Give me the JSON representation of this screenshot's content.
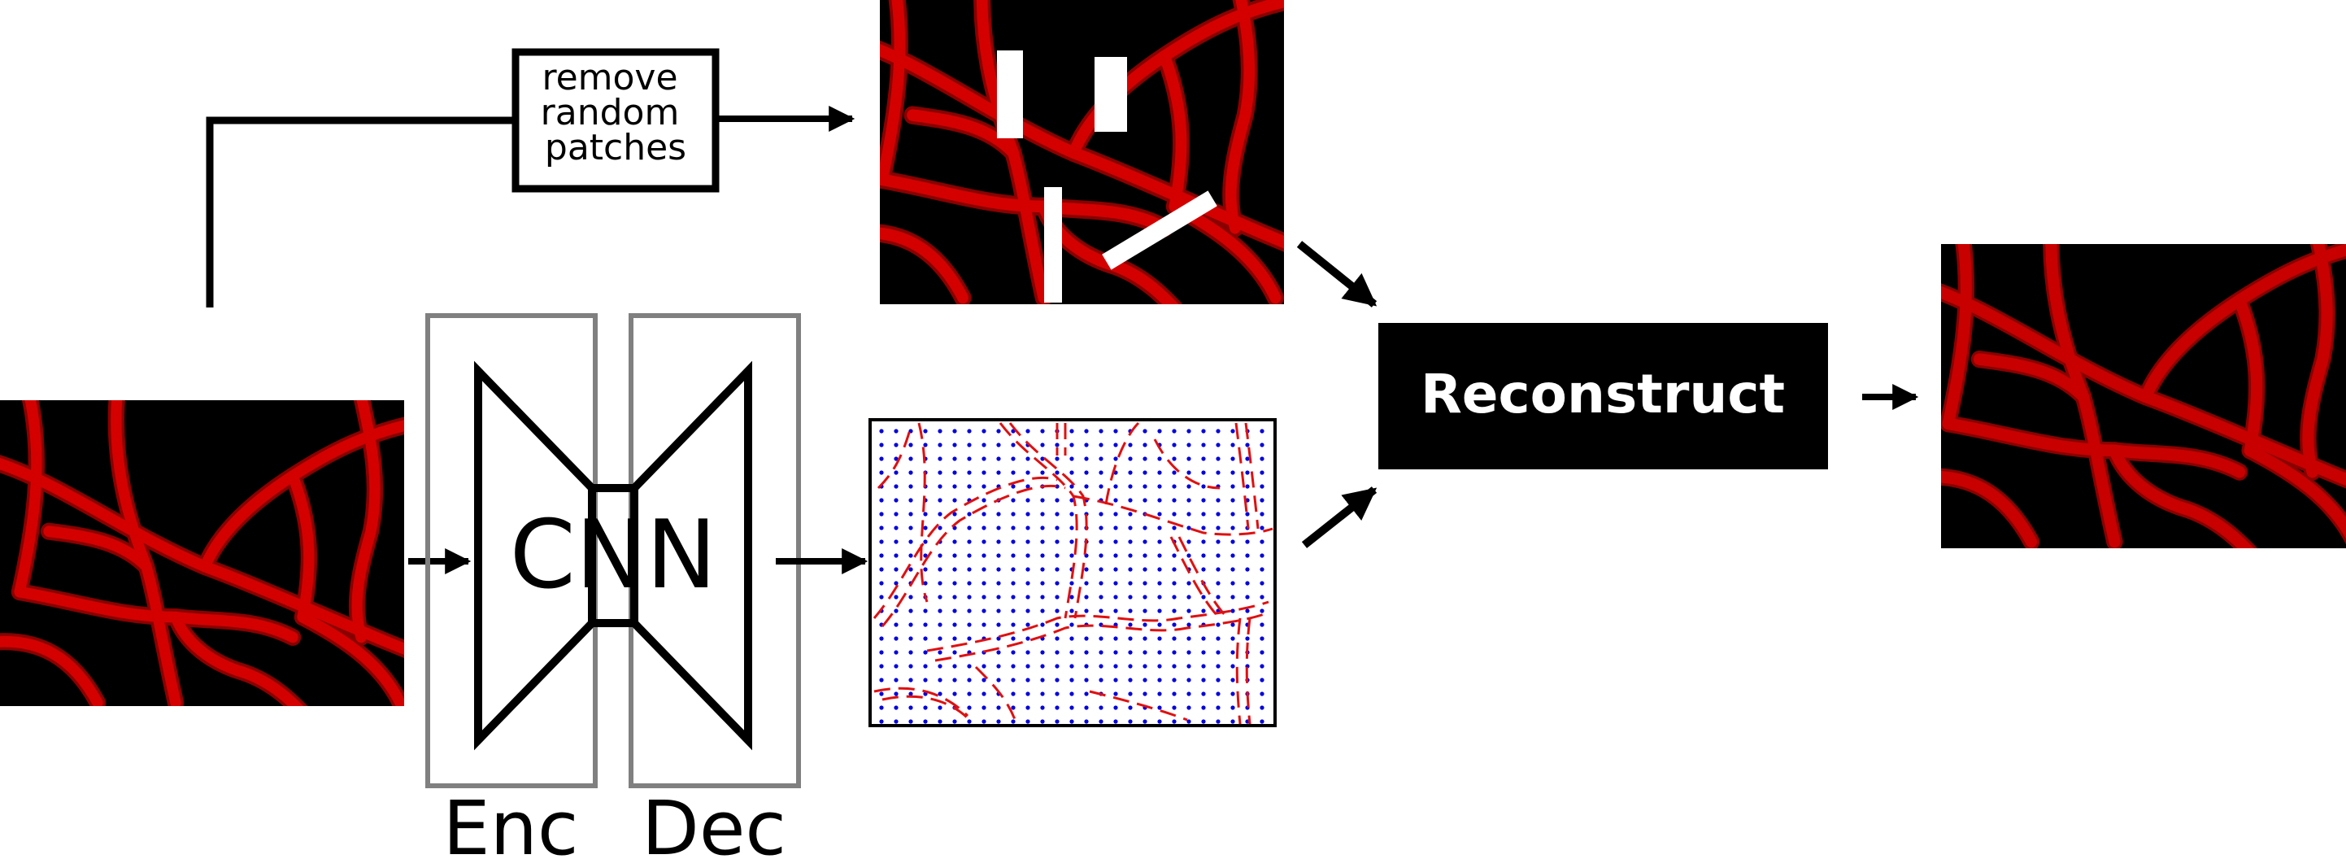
{
  "labels": {
    "remove_patches": [
      "remove",
      "random",
      "patches"
    ],
    "network": "CNN",
    "encoder": "Enc",
    "decoder": "Dec",
    "reconstruct": "Reconstruct"
  },
  "images": {
    "input": "input vessel image",
    "masked": "vessel image with removed patches",
    "field": "predicted orientation field",
    "output": "reconstructed vessel image"
  },
  "colors": {
    "vessel": "#c00000",
    "vessel_dark": "#7a0000",
    "background": "#000000",
    "field_dashes": "#e01010",
    "field_dots": "#0000e0",
    "box_outline": "#808080",
    "ink": "#000000"
  }
}
